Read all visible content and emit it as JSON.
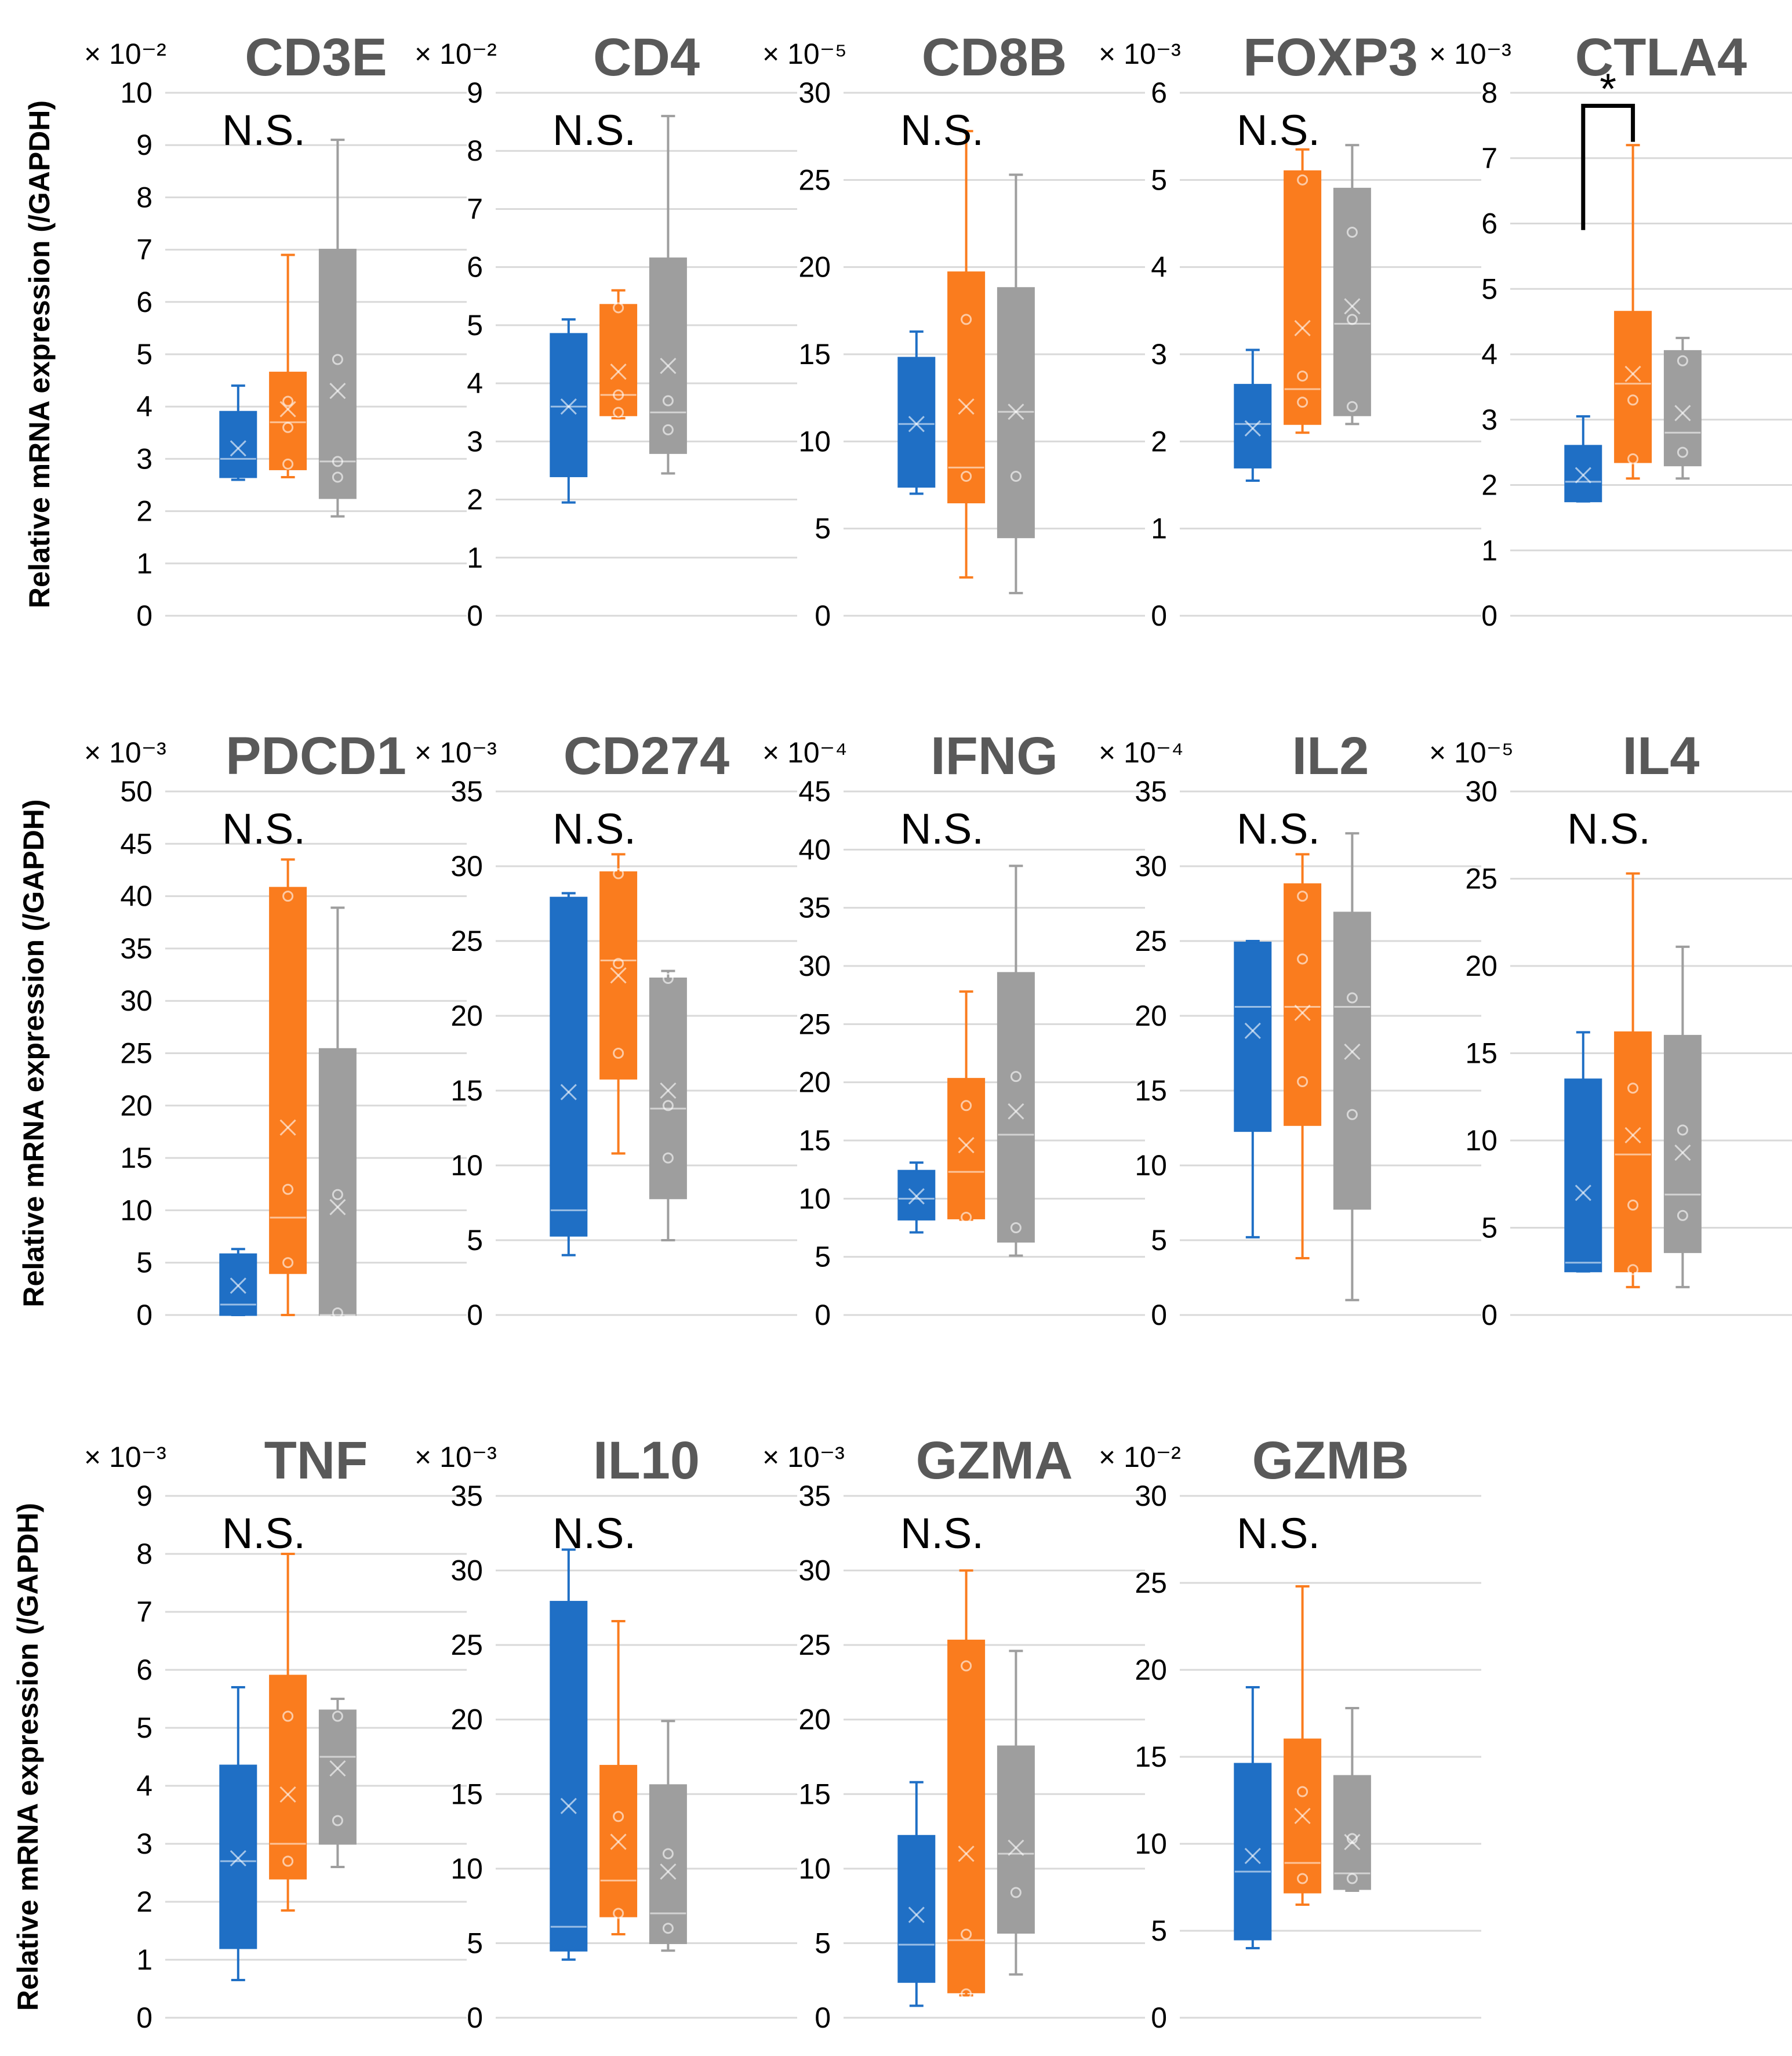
{
  "figure": {
    "ylabel": "Relative mRNA expression (/GAPDH)",
    "group_colors": [
      "#1f6fc5",
      "#fa7c1e",
      "#9e9e9e"
    ]
  },
  "chart_data": [
    {
      "type": "box",
      "title": "CD3E",
      "scale_label": "× 10⁻²",
      "ylim": [
        0,
        10
      ],
      "ticks": [
        0,
        1,
        2,
        3,
        4,
        5,
        6,
        7,
        8,
        9,
        10
      ],
      "ylabel": "Relative mRNA expression (/GAPDH)",
      "significance": "N.S.",
      "series": [
        {
          "group": 1,
          "color": "#1f6fc5",
          "min": 2.6,
          "q1": 2.65,
          "median": 3.0,
          "q3": 3.9,
          "max": 4.4,
          "mean": 3.2,
          "points": []
        },
        {
          "group": 2,
          "color": "#fa7c1e",
          "min": 2.65,
          "q1": 2.8,
          "median": 3.7,
          "q3": 4.65,
          "max": 6.9,
          "mean": 3.95,
          "points": [
            2.9,
            3.6,
            4.1
          ]
        },
        {
          "group": 3,
          "color": "#9e9e9e",
          "min": 1.9,
          "q1": 2.25,
          "median": 2.95,
          "q3": 7.0,
          "max": 9.1,
          "mean": 4.3,
          "points": [
            2.65,
            2.95,
            4.9
          ]
        }
      ]
    },
    {
      "type": "box",
      "title": "CD4",
      "scale_label": "× 10⁻²",
      "ylim": [
        0,
        9
      ],
      "ticks": [
        0,
        1,
        2,
        3,
        4,
        5,
        6,
        7,
        8,
        9
      ],
      "ylabel": "",
      "significance": "N.S.",
      "series": [
        {
          "group": 1,
          "color": "#1f6fc5",
          "min": 1.95,
          "q1": 2.4,
          "median": 3.6,
          "q3": 4.85,
          "max": 5.1,
          "mean": 3.6,
          "points": []
        },
        {
          "group": 2,
          "color": "#fa7c1e",
          "min": 3.4,
          "q1": 3.45,
          "median": 3.8,
          "q3": 5.35,
          "max": 5.6,
          "mean": 4.2,
          "points": [
            3.5,
            3.8,
            5.3
          ]
        },
        {
          "group": 3,
          "color": "#9e9e9e",
          "min": 2.45,
          "q1": 2.8,
          "median": 3.5,
          "q3": 6.15,
          "max": 8.6,
          "mean": 4.3,
          "points": [
            3.2,
            3.7
          ]
        }
      ]
    },
    {
      "type": "box",
      "title": "CD8B",
      "scale_label": "× 10⁻⁵",
      "ylim": [
        0,
        30
      ],
      "ticks": [
        0,
        5,
        10,
        15,
        20,
        25,
        30
      ],
      "ylabel": "",
      "significance": "N.S.",
      "series": [
        {
          "group": 1,
          "color": "#1f6fc5",
          "min": 7.0,
          "q1": 7.4,
          "median": 11.0,
          "q3": 14.8,
          "max": 16.3,
          "mean": 11.0,
          "points": []
        },
        {
          "group": 2,
          "color": "#fa7c1e",
          "min": 2.2,
          "q1": 6.5,
          "median": 8.5,
          "q3": 19.7,
          "max": 27.8,
          "mean": 12.0,
          "points": [
            8.0,
            17.0
          ]
        },
        {
          "group": 3,
          "color": "#9e9e9e",
          "min": 1.3,
          "q1": 4.5,
          "median": 11.7,
          "q3": 18.8,
          "max": 25.3,
          "mean": 11.7,
          "points": [
            8.0
          ]
        }
      ]
    },
    {
      "type": "box",
      "title": "FOXP3",
      "scale_label": "× 10⁻³",
      "ylim": [
        0,
        6
      ],
      "ticks": [
        0,
        1,
        2,
        3,
        4,
        5,
        6
      ],
      "ylabel": "",
      "significance": "N.S.",
      "series": [
        {
          "group": 1,
          "color": "#1f6fc5",
          "min": 1.55,
          "q1": 1.7,
          "median": 2.2,
          "q3": 2.65,
          "max": 3.05,
          "mean": 2.15,
          "points": []
        },
        {
          "group": 2,
          "color": "#fa7c1e",
          "min": 2.1,
          "q1": 2.2,
          "median": 2.6,
          "q3": 5.1,
          "max": 5.35,
          "mean": 3.3,
          "points": [
            2.45,
            2.75,
            5.0
          ]
        },
        {
          "group": 3,
          "color": "#9e9e9e",
          "min": 2.2,
          "q1": 2.3,
          "median": 3.35,
          "q3": 4.9,
          "max": 5.4,
          "mean": 3.55,
          "points": [
            2.4,
            3.4,
            4.4
          ]
        }
      ]
    },
    {
      "type": "box",
      "title": "CTLA4",
      "scale_label": "× 10⁻³",
      "ylim": [
        0,
        8
      ],
      "ticks": [
        0,
        1,
        2,
        3,
        4,
        5,
        6,
        7,
        8
      ],
      "ylabel": "",
      "significance": "*",
      "series": [
        {
          "group": 1,
          "color": "#1f6fc5",
          "min": 1.75,
          "q1": 1.75,
          "median": 2.05,
          "q3": 2.6,
          "max": 3.05,
          "mean": 2.15,
          "points": []
        },
        {
          "group": 2,
          "color": "#fa7c1e",
          "min": 2.1,
          "q1": 2.35,
          "median": 3.55,
          "q3": 4.65,
          "max": 7.2,
          "mean": 3.7,
          "points": [
            2.4,
            3.3
          ]
        },
        {
          "group": 3,
          "color": "#9e9e9e",
          "min": 2.1,
          "q1": 2.3,
          "median": 2.8,
          "q3": 4.05,
          "max": 4.25,
          "mean": 3.1,
          "points": [
            2.5,
            3.9
          ]
        }
      ]
    },
    {
      "type": "box",
      "title": "PDCD1",
      "scale_label": "× 10⁻³",
      "ylim": [
        0,
        50
      ],
      "ticks": [
        0,
        5,
        10,
        15,
        20,
        25,
        30,
        35,
        40,
        45,
        50
      ],
      "ylabel": "Relative mRNA expression (/GAPDH)",
      "significance": "N.S.",
      "series": [
        {
          "group": 1,
          "color": "#1f6fc5",
          "min": 0.0,
          "q1": 0.0,
          "median": 1.0,
          "q3": 5.8,
          "max": 6.3,
          "mean": 2.8,
          "points": []
        },
        {
          "group": 2,
          "color": "#fa7c1e",
          "min": 0.0,
          "q1": 4.0,
          "median": 9.3,
          "q3": 40.8,
          "max": 43.5,
          "mean": 17.9,
          "points": [
            5.0,
            12.0,
            40.0
          ]
        },
        {
          "group": 3,
          "color": "#9e9e9e",
          "min": 0.0,
          "q1": 0.0,
          "median": 0.0,
          "q3": 25.4,
          "max": 38.9,
          "mean": 10.3,
          "points": [
            0.2,
            11.5
          ]
        }
      ]
    },
    {
      "type": "box",
      "title": "CD274",
      "scale_label": "× 10⁻³",
      "ylim": [
        0,
        35
      ],
      "ticks": [
        0,
        5,
        10,
        15,
        20,
        25,
        30,
        35
      ],
      "ylabel": "",
      "significance": "N.S.",
      "series": [
        {
          "group": 1,
          "color": "#1f6fc5",
          "min": 4.0,
          "q1": 5.3,
          "median": 7.0,
          "q3": 27.9,
          "max": 28.2,
          "mean": 14.9,
          "points": []
        },
        {
          "group": 2,
          "color": "#fa7c1e",
          "min": 10.8,
          "q1": 15.8,
          "median": 23.7,
          "q3": 29.6,
          "max": 30.8,
          "mean": 22.7,
          "points": [
            17.5,
            23.5,
            29.5
          ]
        },
        {
          "group": 3,
          "color": "#9e9e9e",
          "min": 5.0,
          "q1": 7.8,
          "median": 13.8,
          "q3": 22.5,
          "max": 23.0,
          "mean": 15.0,
          "points": [
            10.5,
            14.0,
            22.5
          ]
        }
      ]
    },
    {
      "type": "box",
      "title": "IFNG",
      "scale_label": "× 10⁻⁴",
      "ylim": [
        0,
        45
      ],
      "ticks": [
        0,
        5,
        10,
        15,
        20,
        25,
        30,
        35,
        40,
        45
      ],
      "ylabel": "",
      "significance": "N.S.",
      "series": [
        {
          "group": 1,
          "color": "#1f6fc5",
          "min": 7.1,
          "q1": 8.2,
          "median": 10.0,
          "q3": 12.4,
          "max": 13.1,
          "mean": 10.2,
          "points": []
        },
        {
          "group": 2,
          "color": "#fa7c1e",
          "min": 8.2,
          "q1": 8.3,
          "median": 12.3,
          "q3": 20.3,
          "max": 27.8,
          "mean": 14.6,
          "points": [
            8.4,
            18.0
          ]
        },
        {
          "group": 3,
          "color": "#9e9e9e",
          "min": 5.1,
          "q1": 6.3,
          "median": 15.5,
          "q3": 29.4,
          "max": 38.6,
          "mean": 17.5,
          "points": [
            7.5,
            20.5
          ]
        }
      ]
    },
    {
      "type": "box",
      "title": "IL2",
      "scale_label": "× 10⁻⁴",
      "ylim": [
        0,
        35
      ],
      "ticks": [
        0,
        5,
        10,
        15,
        20,
        25,
        30,
        35
      ],
      "ylabel": "",
      "significance": "N.S.",
      "series": [
        {
          "group": 1,
          "color": "#1f6fc5",
          "min": 5.2,
          "q1": 12.3,
          "median": 20.6,
          "q3": 24.9,
          "max": 25.0,
          "mean": 19.0,
          "points": []
        },
        {
          "group": 2,
          "color": "#fa7c1e",
          "min": 3.8,
          "q1": 12.7,
          "median": 20.6,
          "q3": 28.8,
          "max": 30.8,
          "mean": 20.2,
          "points": [
            15.6,
            23.8,
            28.0
          ]
        },
        {
          "group": 3,
          "color": "#9e9e9e",
          "min": 1.0,
          "q1": 7.1,
          "median": 20.6,
          "q3": 26.9,
          "max": 32.2,
          "mean": 17.6,
          "points": [
            13.4,
            21.2
          ]
        }
      ]
    },
    {
      "type": "box",
      "title": "IL4",
      "scale_label": "× 10⁻⁵",
      "ylim": [
        0,
        30
      ],
      "ticks": [
        0,
        5,
        10,
        15,
        20,
        25,
        30
      ],
      "ylabel": "",
      "significance": "N.S.",
      "series": [
        {
          "group": 1,
          "color": "#1f6fc5",
          "min": 2.5,
          "q1": 2.5,
          "median": 3.0,
          "q3": 13.5,
          "max": 16.2,
          "mean": 7.0,
          "points": []
        },
        {
          "group": 2,
          "color": "#fa7c1e",
          "min": 1.6,
          "q1": 2.5,
          "median": 9.2,
          "q3": 16.2,
          "max": 25.3,
          "mean": 10.3,
          "points": [
            2.6,
            6.3,
            13.0
          ]
        },
        {
          "group": 3,
          "color": "#9e9e9e",
          "min": 1.6,
          "q1": 3.6,
          "median": 6.9,
          "q3": 16.0,
          "max": 21.1,
          "mean": 9.3,
          "points": [
            5.7,
            10.6
          ]
        }
      ]
    },
    {
      "type": "box",
      "title": "TNF",
      "scale_label": "× 10⁻³",
      "ylim": [
        0,
        9
      ],
      "ticks": [
        0,
        1,
        2,
        3,
        4,
        5,
        6,
        7,
        8,
        9
      ],
      "ylabel": "Relative mRNA expression (/GAPDH)",
      "significance": "N.S.",
      "series": [
        {
          "group": 1,
          "color": "#1f6fc5",
          "min": 0.65,
          "q1": 1.2,
          "median": 2.7,
          "q3": 4.35,
          "max": 5.7,
          "mean": 2.75,
          "points": []
        },
        {
          "group": 2,
          "color": "#fa7c1e",
          "min": 1.85,
          "q1": 2.4,
          "median": 3.0,
          "q3": 5.9,
          "max": 8.0,
          "mean": 3.85,
          "points": [
            2.7,
            5.2
          ]
        },
        {
          "group": 3,
          "color": "#9e9e9e",
          "min": 2.6,
          "q1": 3.0,
          "median": 4.5,
          "q3": 5.3,
          "max": 5.5,
          "mean": 4.3,
          "points": [
            3.4,
            5.2
          ]
        }
      ]
    },
    {
      "type": "box",
      "title": "IL10",
      "scale_label": "× 10⁻³",
      "ylim": [
        0,
        35
      ],
      "ticks": [
        0,
        5,
        10,
        15,
        20,
        25,
        30,
        35
      ],
      "ylabel": "",
      "significance": "N.S.",
      "series": [
        {
          "group": 1,
          "color": "#1f6fc5",
          "min": 3.9,
          "q1": 4.5,
          "median": 6.1,
          "q3": 27.9,
          "max": 31.4,
          "mean": 14.2,
          "points": []
        },
        {
          "group": 2,
          "color": "#fa7c1e",
          "min": 5.6,
          "q1": 6.8,
          "median": 9.2,
          "q3": 16.9,
          "max": 26.6,
          "mean": 11.8,
          "points": [
            7.0,
            13.5
          ]
        },
        {
          "group": 3,
          "color": "#9e9e9e",
          "min": 4.5,
          "q1": 5.0,
          "median": 7.0,
          "q3": 15.6,
          "max": 19.9,
          "mean": 9.8,
          "points": [
            6.0,
            11.0
          ]
        }
      ]
    },
    {
      "type": "box",
      "title": "GZMA",
      "scale_label": "× 10⁻³",
      "ylim": [
        0,
        35
      ],
      "ticks": [
        0,
        5,
        10,
        15,
        20,
        25,
        30,
        35
      ],
      "ylabel": "",
      "significance": "N.S.",
      "series": [
        {
          "group": 1,
          "color": "#1f6fc5",
          "min": 0.8,
          "q1": 2.4,
          "median": 4.9,
          "q3": 12.2,
          "max": 15.8,
          "mean": 6.9,
          "points": []
        },
        {
          "group": 2,
          "color": "#fa7c1e",
          "min": 1.5,
          "q1": 1.7,
          "median": 5.2,
          "q3": 25.3,
          "max": 30.0,
          "mean": 11.0,
          "points": [
            1.6,
            5.6,
            23.6
          ]
        },
        {
          "group": 3,
          "color": "#9e9e9e",
          "min": 2.9,
          "q1": 5.7,
          "median": 11.0,
          "q3": 18.2,
          "max": 24.6,
          "mean": 11.4,
          "points": [
            8.4
          ]
        }
      ]
    },
    {
      "type": "box",
      "title": "GZMB",
      "scale_label": "× 10⁻²",
      "ylim": [
        0,
        30
      ],
      "ticks": [
        0,
        5,
        10,
        15,
        20,
        25,
        30
      ],
      "ylabel": "",
      "significance": "N.S.",
      "series": [
        {
          "group": 1,
          "color": "#1f6fc5",
          "min": 4.0,
          "q1": 4.5,
          "median": 8.4,
          "q3": 14.6,
          "max": 19.0,
          "mean": 9.3,
          "points": []
        },
        {
          "group": 2,
          "color": "#fa7c1e",
          "min": 6.5,
          "q1": 7.2,
          "median": 8.9,
          "q3": 16.0,
          "max": 24.8,
          "mean": 11.6,
          "points": [
            8.0,
            13.0
          ]
        },
        {
          "group": 3,
          "color": "#9e9e9e",
          "min": 7.3,
          "q1": 7.4,
          "median": 8.3,
          "q3": 13.9,
          "max": 17.8,
          "mean": 10.1,
          "points": [
            8.0,
            10.3
          ]
        }
      ]
    }
  ]
}
